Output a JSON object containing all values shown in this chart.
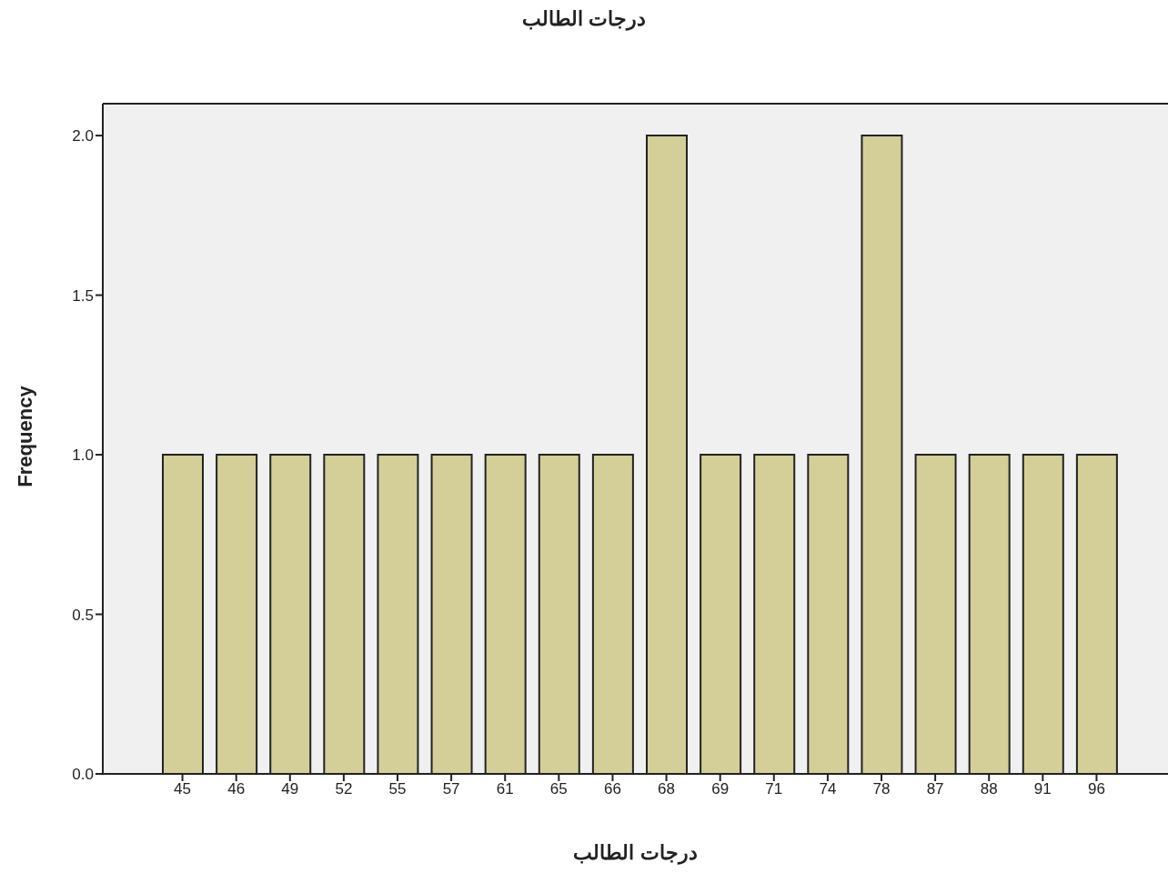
{
  "chart_data": {
    "type": "bar",
    "title": "درجات الطالب",
    "xlabel": "درجات الطالب",
    "ylabel": "Frequency",
    "categories": [
      "45",
      "46",
      "49",
      "52",
      "55",
      "57",
      "61",
      "65",
      "66",
      "68",
      "69",
      "71",
      "74",
      "78",
      "87",
      "88",
      "91",
      "96"
    ],
    "values": [
      1,
      1,
      1,
      1,
      1,
      1,
      1,
      1,
      1,
      2,
      1,
      1,
      1,
      2,
      1,
      1,
      1,
      1
    ],
    "color": "#d4cf98",
    "ylim": [
      0,
      2.1
    ],
    "yticks": [
      {
        "value": 0,
        "label": "0.0"
      },
      {
        "value": 0.5,
        "label": "0.5"
      },
      {
        "value": 1,
        "label": "1.0"
      },
      {
        "value": 1.5,
        "label": "1.5"
      },
      {
        "value": 2,
        "label": "2.0"
      }
    ],
    "grid": false,
    "legend": false
  }
}
